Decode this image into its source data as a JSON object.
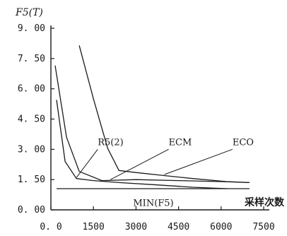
{
  "chart_data": {
    "type": "line",
    "ylabel": "F5(T)",
    "xlabel": "采样次数",
    "xlim": [
      0,
      7500
    ],
    "ylim": [
      0,
      9
    ],
    "x_ticks": [
      "0. 0",
      "1500",
      "3000",
      "4500",
      "6000",
      "7500"
    ],
    "y_ticks": [
      "0. 00",
      "1. 50",
      "3. 00",
      "4. 50",
      "6. 00",
      "7. 50",
      "9. 00"
    ],
    "series": [
      {
        "name": "R5(2)",
        "x": [
          200,
          500,
          900,
          1500,
          2400,
          3600,
          5000,
          6200
        ],
        "y": [
          5.45,
          2.4,
          1.55,
          1.45,
          1.35,
          1.25,
          1.12,
          1.05
        ]
      },
      {
        "name": "ECM",
        "x": [
          150,
          550,
          1000,
          1800,
          3000,
          4500,
          6000,
          7000
        ],
        "y": [
          7.15,
          3.6,
          1.9,
          1.45,
          1.5,
          1.45,
          1.4,
          1.35
        ]
      },
      {
        "name": "ECO",
        "x": [
          1000,
          1500,
          2000,
          2400,
          3000,
          4000,
          5000,
          6200,
          7000
        ],
        "y": [
          8.15,
          5.5,
          3.05,
          1.95,
          1.85,
          1.7,
          1.55,
          1.4,
          1.35
        ]
      },
      {
        "name": "MIN(F5)",
        "x": [
          200,
          7000
        ],
        "y": [
          1.05,
          1.05
        ]
      }
    ],
    "annotations": [
      {
        "text": "R5(2)",
        "x": 1650,
        "y": 3.2
      },
      {
        "text": "ECM",
        "x": 4150,
        "y": 3.2
      },
      {
        "text": "ECO",
        "x": 6400,
        "y": 3.2
      },
      {
        "text": "MIN(F5)",
        "x": 2900,
        "y": 0.2
      }
    ],
    "grid": false
  }
}
